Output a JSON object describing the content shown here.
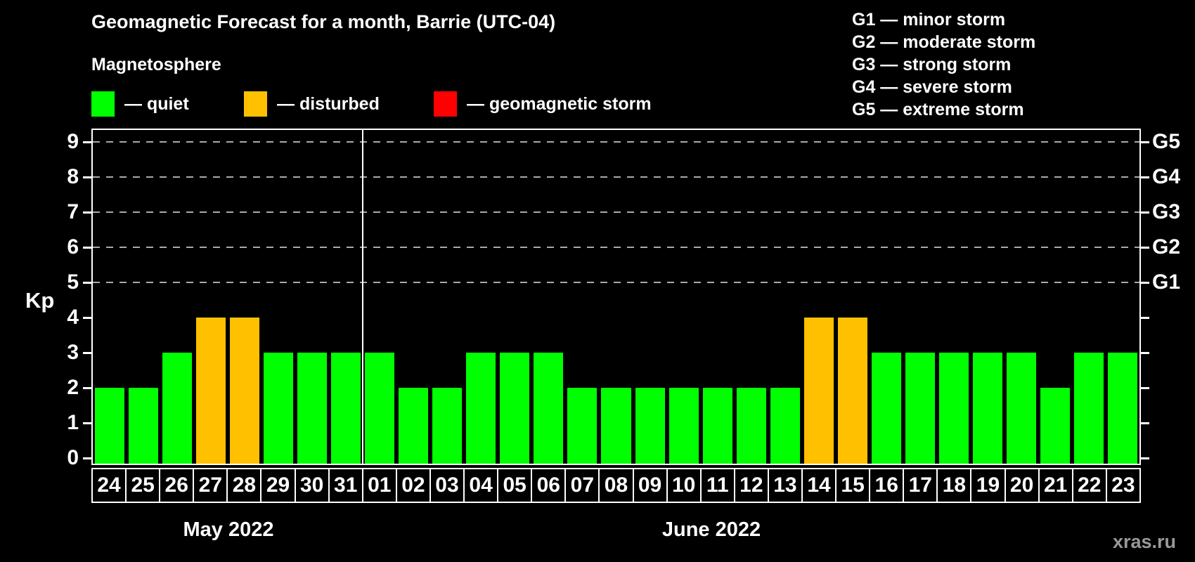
{
  "title": "Geomagnetic Forecast for a month, Barrie (UTC-04)",
  "subtitle": "Magnetosphere",
  "legend": {
    "items": [
      {
        "status": "quiet",
        "label": "— quiet",
        "color": "#00ff00"
      },
      {
        "status": "disturbed",
        "label": "— disturbed",
        "color": "#ffc000"
      },
      {
        "status": "storm",
        "label": "— geomagnetic storm",
        "color": "#ff0000"
      }
    ]
  },
  "g_scale_legend": [
    "G1 — minor storm",
    "G2 — moderate storm",
    "G3 — strong storm",
    "G4 — severe storm",
    "G5 — extreme storm"
  ],
  "watermark": "xras.ru",
  "colors": {
    "background": "#000000",
    "axis": "#ffffff",
    "grid": "#aaaaaa",
    "quiet": "#00ff00",
    "disturbed": "#ffc000",
    "storm": "#ff0000",
    "watermark": "#999999"
  },
  "chart_data": {
    "type": "bar",
    "title": "Geomagnetic Forecast for a month, Barrie (UTC-04)",
    "ylabel": "Kp",
    "ylim": [
      0,
      9.3
    ],
    "yticks": [
      0,
      1,
      2,
      3,
      4,
      5,
      6,
      7,
      8,
      9
    ],
    "gridlines_at_kp": [
      5,
      6,
      7,
      8,
      9
    ],
    "grid": "dashed, only at storm levels (Kp 5-9)",
    "legend_position": "top-left",
    "right_axis": [
      {
        "kp": 5,
        "label": "G1"
      },
      {
        "kp": 6,
        "label": "G2"
      },
      {
        "kp": 7,
        "label": "G3"
      },
      {
        "kp": 8,
        "label": "G4"
      },
      {
        "kp": 9,
        "label": "G5"
      }
    ],
    "months": [
      {
        "label": "May 2022",
        "days": [
          {
            "date": "24",
            "kp": 2,
            "status": "quiet"
          },
          {
            "date": "25",
            "kp": 2,
            "status": "quiet"
          },
          {
            "date": "26",
            "kp": 3,
            "status": "quiet"
          },
          {
            "date": "27",
            "kp": 4,
            "status": "disturbed"
          },
          {
            "date": "28",
            "kp": 4,
            "status": "disturbed"
          },
          {
            "date": "29",
            "kp": 3,
            "status": "quiet"
          },
          {
            "date": "30",
            "kp": 3,
            "status": "quiet"
          },
          {
            "date": "31",
            "kp": 3,
            "status": "quiet"
          }
        ]
      },
      {
        "label": "June 2022",
        "days": [
          {
            "date": "01",
            "kp": 3,
            "status": "quiet"
          },
          {
            "date": "02",
            "kp": 2,
            "status": "quiet"
          },
          {
            "date": "03",
            "kp": 2,
            "status": "quiet"
          },
          {
            "date": "04",
            "kp": 3,
            "status": "quiet"
          },
          {
            "date": "05",
            "kp": 3,
            "status": "quiet"
          },
          {
            "date": "06",
            "kp": 3,
            "status": "quiet"
          },
          {
            "date": "07",
            "kp": 2,
            "status": "quiet"
          },
          {
            "date": "08",
            "kp": 2,
            "status": "quiet"
          },
          {
            "date": "09",
            "kp": 2,
            "status": "quiet"
          },
          {
            "date": "10",
            "kp": 2,
            "status": "quiet"
          },
          {
            "date": "11",
            "kp": 2,
            "status": "quiet"
          },
          {
            "date": "12",
            "kp": 2,
            "status": "quiet"
          },
          {
            "date": "13",
            "kp": 2,
            "status": "quiet"
          },
          {
            "date": "14",
            "kp": 4,
            "status": "disturbed"
          },
          {
            "date": "15",
            "kp": 4,
            "status": "disturbed"
          },
          {
            "date": "16",
            "kp": 3,
            "status": "quiet"
          },
          {
            "date": "17",
            "kp": 3,
            "status": "quiet"
          },
          {
            "date": "18",
            "kp": 3,
            "status": "quiet"
          },
          {
            "date": "19",
            "kp": 3,
            "status": "quiet"
          },
          {
            "date": "20",
            "kp": 3,
            "status": "quiet"
          },
          {
            "date": "21",
            "kp": 2,
            "status": "quiet"
          },
          {
            "date": "22",
            "kp": 3,
            "status": "quiet"
          },
          {
            "date": "23",
            "kp": 3,
            "status": "quiet"
          }
        ]
      }
    ]
  }
}
